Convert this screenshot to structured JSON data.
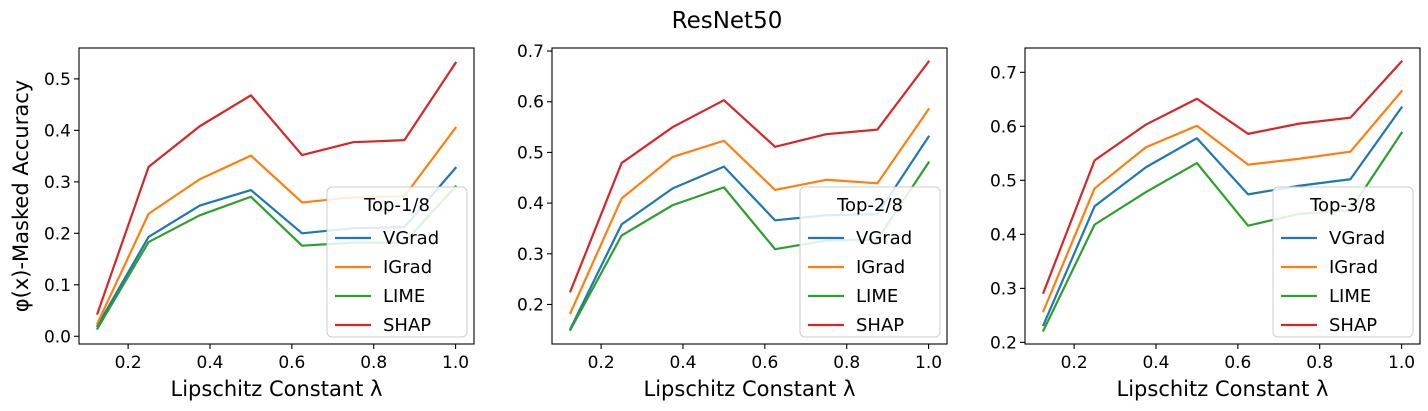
{
  "figure": {
    "title": "ResNet50"
  },
  "chart_data": [
    {
      "type": "line",
      "xlabel": "Lipschitz Constant λ",
      "ylabel": "φ(x)-Masked Accuracy",
      "x": [
        0.125,
        0.25,
        0.375,
        0.5,
        0.625,
        0.75,
        0.875,
        1.0
      ],
      "xlim": [
        0.08,
        1.045
      ],
      "ylim": [
        -0.015,
        0.56
      ],
      "xticks": [
        0.2,
        0.4,
        0.6,
        0.8,
        1.0
      ],
      "xtick_labels": [
        "0.2",
        "0.4",
        "0.6",
        "0.8",
        "1.0"
      ],
      "yticks": [
        0.0,
        0.1,
        0.2,
        0.3,
        0.4,
        0.5
      ],
      "ytick_labels": [
        "0.0",
        "0.1",
        "0.2",
        "0.3",
        "0.4",
        "0.5"
      ],
      "legend_title": "Top-1/8",
      "legend_position": "lower-right",
      "grid": false,
      "series": [
        {
          "name": "VGrad",
          "color": "#1f77b4",
          "values": [
            0.02,
            0.193,
            0.254,
            0.284,
            0.2,
            0.21,
            0.212,
            0.327
          ]
        },
        {
          "name": "IGrad",
          "color": "#ff7f0e",
          "values": [
            0.025,
            0.238,
            0.305,
            0.351,
            0.26,
            0.27,
            0.272,
            0.405
          ]
        },
        {
          "name": "LIME",
          "color": "#2ca02c",
          "values": [
            0.015,
            0.183,
            0.235,
            0.271,
            0.176,
            0.182,
            0.182,
            0.291
          ]
        },
        {
          "name": "SHAP",
          "color": "#d62728",
          "values": [
            0.044,
            0.329,
            0.408,
            0.468,
            0.352,
            0.377,
            0.381,
            0.531
          ]
        }
      ]
    },
    {
      "type": "line",
      "xlabel": "Lipschitz Constant λ",
      "ylabel": "",
      "x": [
        0.125,
        0.25,
        0.375,
        0.5,
        0.625,
        0.75,
        0.875,
        1.0
      ],
      "xlim": [
        0.08,
        1.045
      ],
      "ylim": [
        0.122,
        0.706
      ],
      "xticks": [
        0.2,
        0.4,
        0.6,
        0.8,
        1.0
      ],
      "xtick_labels": [
        "0.2",
        "0.4",
        "0.6",
        "0.8",
        "1.0"
      ],
      "yticks": [
        0.2,
        0.3,
        0.4,
        0.5,
        0.6,
        0.7
      ],
      "ytick_labels": [
        "0.2",
        "0.3",
        "0.4",
        "0.5",
        "0.6",
        "0.7"
      ],
      "legend_title": "Top-2/8",
      "legend_position": "lower-right",
      "grid": false,
      "series": [
        {
          "name": "VGrad",
          "color": "#1f77b4",
          "values": [
            0.152,
            0.358,
            0.429,
            0.472,
            0.366,
            0.376,
            0.378,
            0.531
          ]
        },
        {
          "name": "IGrad",
          "color": "#ff7f0e",
          "values": [
            0.183,
            0.409,
            0.491,
            0.523,
            0.426,
            0.446,
            0.439,
            0.585
          ]
        },
        {
          "name": "LIME",
          "color": "#2ca02c",
          "values": [
            0.15,
            0.336,
            0.396,
            0.431,
            0.309,
            0.326,
            0.328,
            0.48
          ]
        },
        {
          "name": "SHAP",
          "color": "#d62728",
          "values": [
            0.226,
            0.479,
            0.55,
            0.603,
            0.511,
            0.536,
            0.545,
            0.679
          ]
        }
      ]
    },
    {
      "type": "line",
      "xlabel": "Lipschitz Constant λ",
      "ylabel": "",
      "x": [
        0.125,
        0.25,
        0.375,
        0.5,
        0.625,
        0.75,
        0.875,
        1.0
      ],
      "xlim": [
        0.08,
        1.045
      ],
      "ylim": [
        0.197,
        0.745
      ],
      "xticks": [
        0.2,
        0.4,
        0.6,
        0.8,
        1.0
      ],
      "xtick_labels": [
        "0.2",
        "0.4",
        "0.6",
        "0.8",
        "1.0"
      ],
      "yticks": [
        0.2,
        0.3,
        0.4,
        0.5,
        0.6,
        0.7
      ],
      "ytick_labels": [
        "0.2",
        "0.3",
        "0.4",
        "0.5",
        "0.6",
        "0.7"
      ],
      "legend_title": "Top-3/8",
      "legend_position": "lower-right",
      "grid": false,
      "series": [
        {
          "name": "VGrad",
          "color": "#1f77b4",
          "values": [
            0.232,
            0.452,
            0.524,
            0.578,
            0.474,
            0.49,
            0.502,
            0.635
          ]
        },
        {
          "name": "IGrad",
          "color": "#ff7f0e",
          "values": [
            0.258,
            0.485,
            0.561,
            0.601,
            0.529,
            0.54,
            0.553,
            0.665
          ]
        },
        {
          "name": "LIME",
          "color": "#2ca02c",
          "values": [
            0.222,
            0.418,
            0.478,
            0.532,
            0.416,
            0.438,
            0.445,
            0.588
          ]
        },
        {
          "name": "SHAP",
          "color": "#d62728",
          "values": [
            0.292,
            0.537,
            0.603,
            0.651,
            0.586,
            0.605,
            0.616,
            0.72
          ]
        }
      ]
    }
  ]
}
